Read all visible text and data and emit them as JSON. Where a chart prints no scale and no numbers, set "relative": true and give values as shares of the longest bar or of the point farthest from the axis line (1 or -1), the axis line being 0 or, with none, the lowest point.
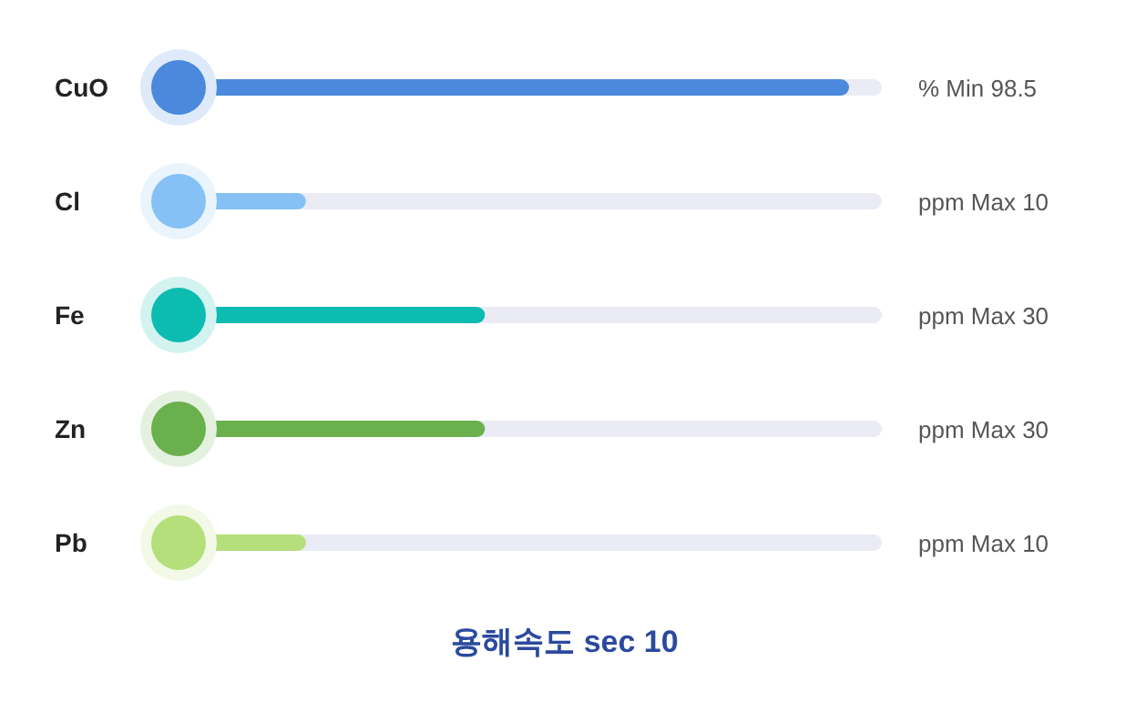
{
  "chart_data": {
    "type": "bar",
    "orientation": "horizontal",
    "relative": true,
    "title": "용해속도 sec 10",
    "categories": [
      "CuO",
      "Cl",
      "Fe",
      "Zn",
      "Pb"
    ],
    "values": [
      1,
      0.19,
      0.457,
      0.457,
      0.19
    ],
    "colors": [
      "#4a89dc",
      "#85c1f5",
      "#0cbcb0",
      "#6ab04c",
      "#b5df7a"
    ],
    "annotations": [
      "% Min 98.5",
      "ppm Max 10",
      "ppm Max 30",
      "ppm Max 30",
      "ppm Max 10"
    ]
  }
}
